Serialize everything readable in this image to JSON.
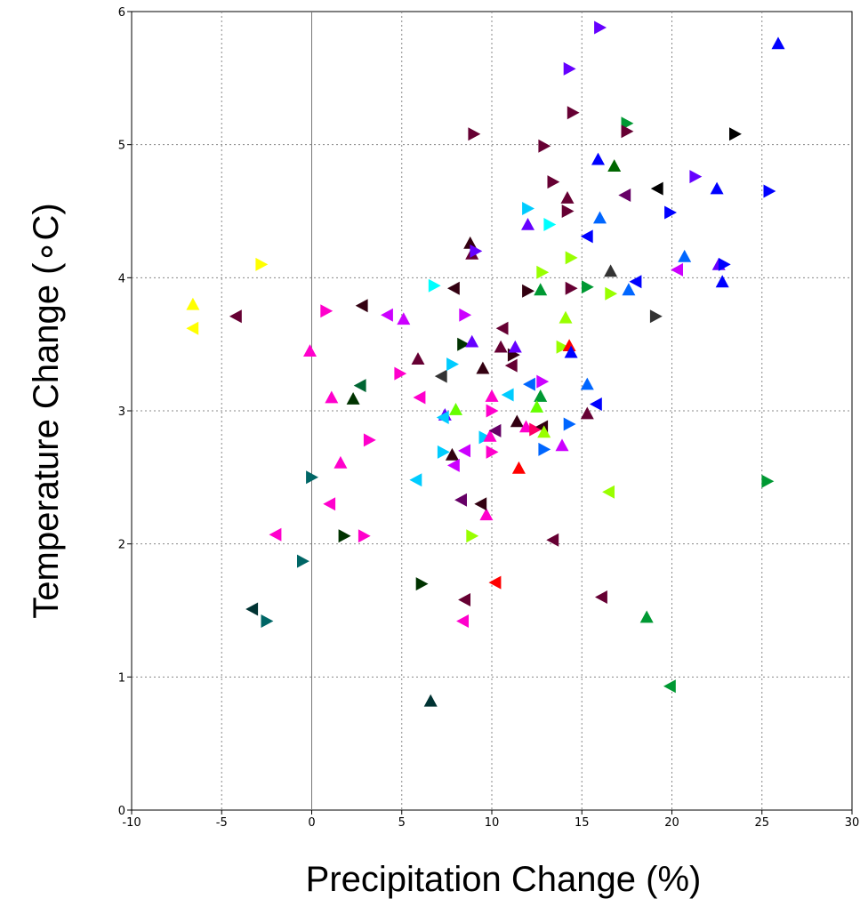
{
  "chart_data": {
    "type": "scatter",
    "xlabel": "Precipitation Change (%)",
    "ylabel": "Temperature Change (∘C)",
    "xlim": [
      -10,
      30
    ],
    "ylim": [
      0,
      6
    ],
    "xticks": [
      -10,
      -5,
      0,
      5,
      10,
      15,
      20,
      25,
      30
    ],
    "yticks": [
      0,
      1,
      2,
      3,
      4,
      5,
      6
    ],
    "x_tick_labels": [
      "-10",
      "-5",
      "0",
      "5",
      "10",
      "15",
      "20",
      "25",
      "30"
    ],
    "y_tick_labels": [
      "0",
      "1",
      "2",
      "3",
      "4",
      "5",
      "6"
    ],
    "grid": "dotted",
    "zero_lines": true,
    "marker": "triangle",
    "points": [
      {
        "x": -6.6,
        "y": 3.8,
        "c": "#ffff00",
        "m": "up"
      },
      {
        "x": -6.6,
        "y": 3.62,
        "c": "#ffff00",
        "m": "left"
      },
      {
        "x": -2.8,
        "y": 4.1,
        "c": "#ffff00",
        "m": "right"
      },
      {
        "x": -4.2,
        "y": 3.71,
        "c": "#660033",
        "m": "left"
      },
      {
        "x": -0.1,
        "y": 3.45,
        "c": "#ff00cc",
        "m": "up"
      },
      {
        "x": 0.8,
        "y": 3.75,
        "c": "#ff00cc",
        "m": "right"
      },
      {
        "x": 2.8,
        "y": 3.79,
        "c": "#330011",
        "m": "left"
      },
      {
        "x": 4.2,
        "y": 3.72,
        "c": "#cc00ff",
        "m": "left"
      },
      {
        "x": 5.1,
        "y": 3.69,
        "c": "#cc00ff",
        "m": "up"
      },
      {
        "x": 1.1,
        "y": 3.1,
        "c": "#ff00cc",
        "m": "up"
      },
      {
        "x": 2.3,
        "y": 3.09,
        "c": "#003300",
        "m": "up"
      },
      {
        "x": 2.7,
        "y": 3.19,
        "c": "#006633",
        "m": "left"
      },
      {
        "x": 4.9,
        "y": 3.28,
        "c": "#ff00cc",
        "m": "right"
      },
      {
        "x": 6.0,
        "y": 3.1,
        "c": "#ff00cc",
        "m": "left"
      },
      {
        "x": 5.9,
        "y": 3.39,
        "c": "#660033",
        "m": "up"
      },
      {
        "x": 6.8,
        "y": 3.94,
        "c": "#00ffff",
        "m": "right"
      },
      {
        "x": 7.9,
        "y": 3.92,
        "c": "#330011",
        "m": "left"
      },
      {
        "x": 8.8,
        "y": 4.26,
        "c": "#330011",
        "m": "up"
      },
      {
        "x": 8.9,
        "y": 4.18,
        "c": "#660033",
        "m": "up"
      },
      {
        "x": 9.1,
        "y": 4.2,
        "c": "#6600ff",
        "m": "right"
      },
      {
        "x": 8.5,
        "y": 3.72,
        "c": "#cc00ff",
        "m": "right"
      },
      {
        "x": 8.4,
        "y": 3.5,
        "c": "#003300",
        "m": "right"
      },
      {
        "x": 8.9,
        "y": 3.52,
        "c": "#6600ff",
        "m": "up"
      },
      {
        "x": 7.2,
        "y": 3.26,
        "c": "#333333",
        "m": "left"
      },
      {
        "x": 7.8,
        "y": 3.35,
        "c": "#00ccff",
        "m": "right"
      },
      {
        "x": 9.5,
        "y": 3.32,
        "c": "#330011",
        "m": "up"
      },
      {
        "x": 10.6,
        "y": 3.62,
        "c": "#660033",
        "m": "left"
      },
      {
        "x": 10.5,
        "y": 3.48,
        "c": "#660033",
        "m": "up"
      },
      {
        "x": 11.2,
        "y": 3.42,
        "c": "#330011",
        "m": "right"
      },
      {
        "x": 11.3,
        "y": 3.48,
        "c": "#6600ff",
        "m": "up"
      },
      {
        "x": 11.1,
        "y": 3.34,
        "c": "#660033",
        "m": "left"
      },
      {
        "x": 10.0,
        "y": 3.11,
        "c": "#ff00cc",
        "m": "up"
      },
      {
        "x": 10.0,
        "y": 3.0,
        "c": "#ff00cc",
        "m": "right"
      },
      {
        "x": 10.9,
        "y": 3.12,
        "c": "#00ccff",
        "m": "left"
      },
      {
        "x": 7.4,
        "y": 2.97,
        "c": "#6600ff",
        "m": "up"
      },
      {
        "x": 7.3,
        "y": 2.95,
        "c": "#00ccff",
        "m": "left"
      },
      {
        "x": 7.3,
        "y": 2.69,
        "c": "#00ccff",
        "m": "right"
      },
      {
        "x": 8.0,
        "y": 3.01,
        "c": "#66ff00",
        "m": "up"
      },
      {
        "x": 7.8,
        "y": 2.67,
        "c": "#330011",
        "m": "up"
      },
      {
        "x": 7.9,
        "y": 2.59,
        "c": "#cc00ff",
        "m": "left"
      },
      {
        "x": 8.5,
        "y": 2.7,
        "c": "#cc00ff",
        "m": "left"
      },
      {
        "x": 9.6,
        "y": 2.8,
        "c": "#00ccff",
        "m": "right"
      },
      {
        "x": 9.9,
        "y": 2.81,
        "c": "#ff00cc",
        "m": "up"
      },
      {
        "x": 10.2,
        "y": 2.85,
        "c": "#660066",
        "m": "left"
      },
      {
        "x": 10.0,
        "y": 2.69,
        "c": "#ff00cc",
        "m": "right"
      },
      {
        "x": 11.4,
        "y": 2.92,
        "c": "#330011",
        "m": "up"
      },
      {
        "x": 11.9,
        "y": 2.88,
        "c": "#ff00cc",
        "m": "up"
      },
      {
        "x": 12.4,
        "y": 2.86,
        "c": "#ff0066",
        "m": "right"
      },
      {
        "x": 12.1,
        "y": 3.2,
        "c": "#0066ff",
        "m": "left"
      },
      {
        "x": 12.8,
        "y": 3.22,
        "c": "#cc00ff",
        "m": "right"
      },
      {
        "x": 12.7,
        "y": 3.11,
        "c": "#009933",
        "m": "up"
      },
      {
        "x": 12.5,
        "y": 3.03,
        "c": "#66ff00",
        "m": "up"
      },
      {
        "x": 12.8,
        "y": 2.88,
        "c": "#330011",
        "m": "left"
      },
      {
        "x": 12.9,
        "y": 2.84,
        "c": "#99ff00",
        "m": "up"
      },
      {
        "x": 12.9,
        "y": 2.71,
        "c": "#0066ff",
        "m": "right"
      },
      {
        "x": 13.9,
        "y": 2.74,
        "c": "#cc00ff",
        "m": "up"
      },
      {
        "x": 14.3,
        "y": 2.9,
        "c": "#0066ff",
        "m": "right"
      },
      {
        "x": 15.3,
        "y": 2.98,
        "c": "#660033",
        "m": "up"
      },
      {
        "x": 15.8,
        "y": 3.05,
        "c": "#0000ff",
        "m": "left"
      },
      {
        "x": 15.3,
        "y": 3.2,
        "c": "#0066ff",
        "m": "up"
      },
      {
        "x": 13.9,
        "y": 3.48,
        "c": "#99ff00",
        "m": "right"
      },
      {
        "x": 14.3,
        "y": 3.49,
        "c": "#ff0000",
        "m": "up"
      },
      {
        "x": 14.4,
        "y": 3.44,
        "c": "#0000ff",
        "m": "up"
      },
      {
        "x": 14.1,
        "y": 3.7,
        "c": "#99ff00",
        "m": "up"
      },
      {
        "x": 12.0,
        "y": 3.9,
        "c": "#330011",
        "m": "right"
      },
      {
        "x": 12.7,
        "y": 3.91,
        "c": "#009933",
        "m": "up"
      },
      {
        "x": 12.8,
        "y": 4.04,
        "c": "#99ff00",
        "m": "right"
      },
      {
        "x": 14.4,
        "y": 3.92,
        "c": "#660033",
        "m": "right"
      },
      {
        "x": 15.3,
        "y": 3.93,
        "c": "#009933",
        "m": "right"
      },
      {
        "x": 16.6,
        "y": 3.88,
        "c": "#99ff00",
        "m": "right"
      },
      {
        "x": 16.6,
        "y": 4.05,
        "c": "#333333",
        "m": "up"
      },
      {
        "x": 14.4,
        "y": 4.15,
        "c": "#99ff00",
        "m": "right"
      },
      {
        "x": 15.3,
        "y": 4.31,
        "c": "#0000ff",
        "m": "left"
      },
      {
        "x": 16.0,
        "y": 4.45,
        "c": "#0066ff",
        "m": "up"
      },
      {
        "x": 14.2,
        "y": 4.6,
        "c": "#660033",
        "m": "up"
      },
      {
        "x": 14.2,
        "y": 4.5,
        "c": "#660033",
        "m": "right"
      },
      {
        "x": 13.4,
        "y": 4.72,
        "c": "#660033",
        "m": "right"
      },
      {
        "x": 12.0,
        "y": 4.52,
        "c": "#00ccff",
        "m": "right"
      },
      {
        "x": 12.0,
        "y": 4.4,
        "c": "#6600ff",
        "m": "up"
      },
      {
        "x": 13.2,
        "y": 4.4,
        "c": "#00ffff",
        "m": "right"
      },
      {
        "x": 17.4,
        "y": 4.62,
        "c": "#660066",
        "m": "left"
      },
      {
        "x": 19.2,
        "y": 4.67,
        "c": "#000000",
        "m": "left"
      },
      {
        "x": 19.9,
        "y": 4.49,
        "c": "#0000ff",
        "m": "right"
      },
      {
        "x": 21.3,
        "y": 4.76,
        "c": "#6600ff",
        "m": "right"
      },
      {
        "x": 22.5,
        "y": 4.67,
        "c": "#0000ff",
        "m": "up"
      },
      {
        "x": 25.4,
        "y": 4.65,
        "c": "#0000ff",
        "m": "right"
      },
      {
        "x": 20.7,
        "y": 4.16,
        "c": "#0066ff",
        "m": "up"
      },
      {
        "x": 20.3,
        "y": 4.06,
        "c": "#cc00ff",
        "m": "left"
      },
      {
        "x": 22.6,
        "y": 4.1,
        "c": "#6600ff",
        "m": "up"
      },
      {
        "x": 22.9,
        "y": 4.1,
        "c": "#0000ff",
        "m": "right"
      },
      {
        "x": 22.8,
        "y": 3.97,
        "c": "#0000ff",
        "m": "up"
      },
      {
        "x": 18.0,
        "y": 3.97,
        "c": "#0000ff",
        "m": "left"
      },
      {
        "x": 17.6,
        "y": 3.91,
        "c": "#0066ff",
        "m": "up"
      },
      {
        "x": 19.1,
        "y": 3.71,
        "c": "#333333",
        "m": "right"
      },
      {
        "x": 15.9,
        "y": 4.89,
        "c": "#0000ff",
        "m": "up"
      },
      {
        "x": 16.8,
        "y": 4.84,
        "c": "#006600",
        "m": "up"
      },
      {
        "x": 17.5,
        "y": 5.16,
        "c": "#009933",
        "m": "right"
      },
      {
        "x": 17.5,
        "y": 5.1,
        "c": "#660033",
        "m": "right"
      },
      {
        "x": 23.5,
        "y": 5.08,
        "c": "#000000",
        "m": "right"
      },
      {
        "x": 14.5,
        "y": 5.24,
        "c": "#660033",
        "m": "right"
      },
      {
        "x": 12.9,
        "y": 4.99,
        "c": "#660033",
        "m": "right"
      },
      {
        "x": 9.0,
        "y": 5.08,
        "c": "#660033",
        "m": "right"
      },
      {
        "x": 14.3,
        "y": 5.57,
        "c": "#6600ff",
        "m": "right"
      },
      {
        "x": 16.0,
        "y": 5.88,
        "c": "#6600ff",
        "m": "right"
      },
      {
        "x": 25.9,
        "y": 5.76,
        "c": "#0000ff",
        "m": "up"
      },
      {
        "x": 16.5,
        "y": 2.39,
        "c": "#99ff00",
        "m": "left"
      },
      {
        "x": 25.3,
        "y": 2.47,
        "c": "#009933",
        "m": "right"
      },
      {
        "x": 18.6,
        "y": 1.45,
        "c": "#009933",
        "m": "up"
      },
      {
        "x": 19.9,
        "y": 0.93,
        "c": "#009933",
        "m": "left"
      },
      {
        "x": 16.1,
        "y": 1.6,
        "c": "#660033",
        "m": "left"
      },
      {
        "x": 13.4,
        "y": 2.03,
        "c": "#660033",
        "m": "left"
      },
      {
        "x": 11.5,
        "y": 2.57,
        "c": "#ff0000",
        "m": "up"
      },
      {
        "x": 10.2,
        "y": 1.71,
        "c": "#ff0000",
        "m": "left"
      },
      {
        "x": 9.7,
        "y": 2.22,
        "c": "#ff00cc",
        "m": "up"
      },
      {
        "x": 9.4,
        "y": 2.3,
        "c": "#330011",
        "m": "left"
      },
      {
        "x": 8.9,
        "y": 2.06,
        "c": "#99ff00",
        "m": "right"
      },
      {
        "x": 8.3,
        "y": 2.33,
        "c": "#660066",
        "m": "left"
      },
      {
        "x": 8.5,
        "y": 1.58,
        "c": "#660033",
        "m": "left"
      },
      {
        "x": 8.4,
        "y": 1.42,
        "c": "#ff00cc",
        "m": "left"
      },
      {
        "x": 6.1,
        "y": 1.7,
        "c": "#003300",
        "m": "right"
      },
      {
        "x": 6.6,
        "y": 0.82,
        "c": "#003333",
        "m": "up"
      },
      {
        "x": 5.8,
        "y": 2.48,
        "c": "#00ccff",
        "m": "left"
      },
      {
        "x": 1.6,
        "y": 2.61,
        "c": "#ff00cc",
        "m": "up"
      },
      {
        "x": 3.2,
        "y": 2.78,
        "c": "#ff00cc",
        "m": "right"
      },
      {
        "x": 1.0,
        "y": 2.3,
        "c": "#ff00cc",
        "m": "left"
      },
      {
        "x": 1.8,
        "y": 2.06,
        "c": "#003300",
        "m": "right"
      },
      {
        "x": 2.9,
        "y": 2.06,
        "c": "#ff00cc",
        "m": "right"
      },
      {
        "x": 0.0,
        "y": 2.5,
        "c": "#006666",
        "m": "right"
      },
      {
        "x": -0.5,
        "y": 1.87,
        "c": "#006666",
        "m": "right"
      },
      {
        "x": -2.0,
        "y": 2.07,
        "c": "#ff00cc",
        "m": "left"
      },
      {
        "x": -3.3,
        "y": 1.51,
        "c": "#003333",
        "m": "left"
      },
      {
        "x": -2.5,
        "y": 1.42,
        "c": "#006666",
        "m": "right"
      }
    ]
  }
}
